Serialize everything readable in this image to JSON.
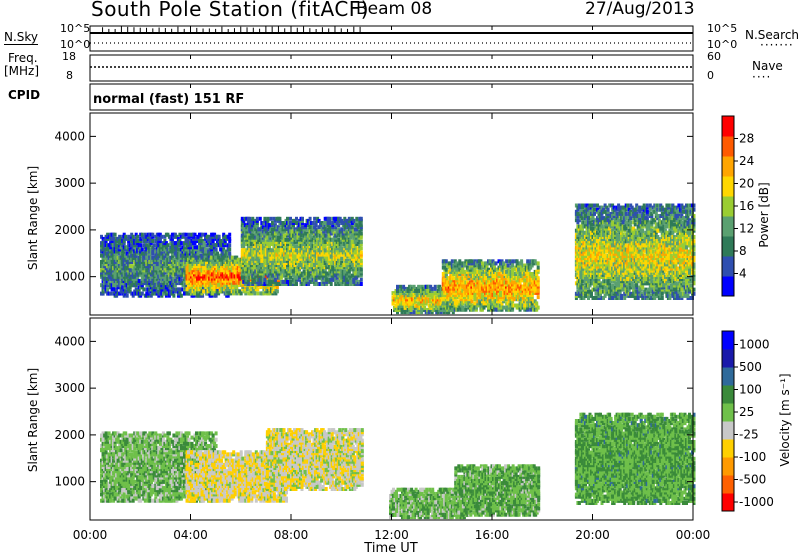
{
  "header": {
    "station_title": "South Pole Station (fitACF)",
    "beam": "Beam 08",
    "date": "27/Aug/2013"
  },
  "status_panels": {
    "nsky_label": "N.Sky",
    "nsky_top": "10^5",
    "nsky_bottom": "10^0",
    "nsearch_label": "N.Search",
    "nsearch_top": "10^5",
    "nsearch_bottom": "10^0",
    "freq_label": "Freq.",
    "freq_unit": "[MHz]",
    "freq_top": "18",
    "freq_bottom": "8",
    "nave_label": "Nave",
    "nave_top": "60",
    "nave_bottom": "0",
    "cpid_label": "CPID",
    "cpid_value": "normal (fast) 151 RF"
  },
  "colors": {
    "power_scale": [
      "#0000ff",
      "#2f4fb0",
      "#2f7a58",
      "#5aa070",
      "#9acd32",
      "#ffd700",
      "#ffa500",
      "#ff5a00",
      "#ff0000"
    ],
    "velocity_scale": [
      "#ff0000",
      "#ff6000",
      "#ff9a00",
      "#ffd000",
      "#c8c8c8",
      "#6fc04a",
      "#3a8a3a",
      "#2f6a9a",
      "#1a1aaa",
      "#0000ff"
    ]
  },
  "chart_data": [
    {
      "type": "heatmap",
      "panel": "power",
      "xlabel": "",
      "ylabel": "Slant Range [km]",
      "xlim": [
        0,
        24
      ],
      "ylim": [
        180,
        4500
      ],
      "ytick_labels": [
        "1000",
        "2000",
        "3000",
        "4000"
      ],
      "colorbar": {
        "label": "Power [dB]",
        "ticks": [
          "4",
          "8",
          "12",
          "16",
          "20",
          "24",
          "28"
        ],
        "range": [
          0,
          30
        ]
      },
      "echo_regions": [
        {
          "t_start": 0.4,
          "t_end": 5.5,
          "r_low": 550,
          "r_high": 1900,
          "power": 9
        },
        {
          "t_start": 3.8,
          "t_end": 7.5,
          "r_low": 600,
          "r_high": 1400,
          "power": 22
        },
        {
          "t_start": 6.0,
          "t_end": 10.8,
          "r_low": 800,
          "r_high": 2200,
          "power": 14
        },
        {
          "t_start": 12.0,
          "t_end": 14.5,
          "r_low": 200,
          "r_high": 750,
          "power": 18
        },
        {
          "t_start": 14.0,
          "t_end": 17.8,
          "r_low": 250,
          "r_high": 1300,
          "power": 20
        },
        {
          "t_start": 19.3,
          "t_end": 24.0,
          "r_low": 500,
          "r_high": 2500,
          "power": 16
        }
      ]
    },
    {
      "type": "heatmap",
      "panel": "velocity",
      "xlabel": "Time UT",
      "ylabel": "Slant Range [km]",
      "xlim": [
        0,
        24
      ],
      "ylim": [
        180,
        4500
      ],
      "xtick_labels": [
        "00:00",
        "04:00",
        "08:00",
        "12:00",
        "16:00",
        "20:00",
        "00:00"
      ],
      "ytick_labels": [
        "1000",
        "2000",
        "3000",
        "4000"
      ],
      "colorbar": {
        "label": "Velocity [m s⁻¹]",
        "ticks": [
          "1000",
          "500",
          "100",
          "25",
          "-25",
          "-100",
          "-500",
          "-1000"
        ],
        "range": [
          -1200,
          1200
        ]
      },
      "echo_regions": [
        {
          "t_start": 0.4,
          "t_end": 5.0,
          "r_low": 550,
          "r_high": 2000,
          "velocity": 150
        },
        {
          "t_start": 3.8,
          "t_end": 7.8,
          "r_low": 550,
          "r_high": 1600,
          "velocity": -200
        },
        {
          "t_start": 7.0,
          "t_end": 10.8,
          "r_low": 800,
          "r_high": 2100,
          "velocity": -150
        },
        {
          "t_start": 11.9,
          "t_end": 15.0,
          "r_low": 200,
          "r_high": 800,
          "velocity": 150
        },
        {
          "t_start": 14.5,
          "t_end": 17.8,
          "r_low": 250,
          "r_high": 1300,
          "velocity": 200
        },
        {
          "t_start": 19.3,
          "t_end": 24.0,
          "r_low": 500,
          "r_high": 2400,
          "velocity": 250
        }
      ]
    }
  ]
}
